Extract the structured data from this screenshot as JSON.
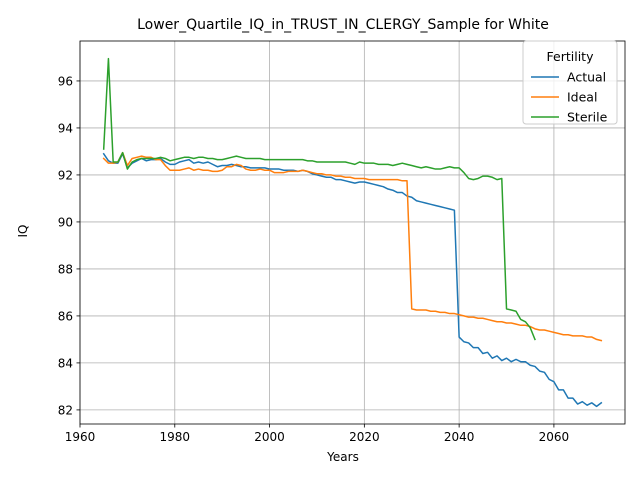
{
  "chart_data": {
    "type": "line",
    "title": "Lower_Quartile_IQ_in_TRUST_IN_CLERGY_Sample for White",
    "xlabel": "Years",
    "ylabel": "IQ",
    "xlim": [
      1960,
      2075
    ],
    "ylim": [
      81.4,
      97.7
    ],
    "xticks": [
      1960,
      1980,
      2000,
      2020,
      2040,
      2060
    ],
    "yticks": [
      82,
      84,
      86,
      88,
      90,
      92,
      94,
      96
    ],
    "grid": true,
    "legend": {
      "title": "Fertility",
      "placement": "top-right"
    },
    "series": [
      {
        "name": "Actual",
        "color": "#1f77b4",
        "points": [
          [
            1965,
            92.9
          ],
          [
            1966,
            92.6
          ],
          [
            1967,
            92.5
          ],
          [
            1968,
            92.5
          ],
          [
            1969,
            92.9
          ],
          [
            1970,
            92.3
          ],
          [
            1971,
            92.5
          ],
          [
            1972,
            92.6
          ],
          [
            1973,
            92.7
          ],
          [
            1974,
            92.6
          ],
          [
            1975,
            92.65
          ],
          [
            1976,
            92.65
          ],
          [
            1977,
            92.7
          ],
          [
            1978,
            92.55
          ],
          [
            1979,
            92.45
          ],
          [
            1980,
            92.45
          ],
          [
            1981,
            92.55
          ],
          [
            1982,
            92.6
          ],
          [
            1983,
            92.65
          ],
          [
            1984,
            92.5
          ],
          [
            1985,
            92.55
          ],
          [
            1986,
            92.5
          ],
          [
            1987,
            92.55
          ],
          [
            1988,
            92.45
          ],
          [
            1989,
            92.35
          ],
          [
            1990,
            92.4
          ],
          [
            1991,
            92.4
          ],
          [
            1992,
            92.45
          ],
          [
            1993,
            92.4
          ],
          [
            1994,
            92.35
          ],
          [
            1995,
            92.35
          ],
          [
            1996,
            92.3
          ],
          [
            1997,
            92.3
          ],
          [
            1998,
            92.3
          ],
          [
            1999,
            92.3
          ],
          [
            2000,
            92.25
          ],
          [
            2001,
            92.25
          ],
          [
            2002,
            92.25
          ],
          [
            2003,
            92.2
          ],
          [
            2004,
            92.2
          ],
          [
            2005,
            92.2
          ],
          [
            2006,
            92.15
          ],
          [
            2007,
            92.2
          ],
          [
            2008,
            92.15
          ],
          [
            2009,
            92.05
          ],
          [
            2010,
            92.0
          ],
          [
            2011,
            91.95
          ],
          [
            2012,
            91.9
          ],
          [
            2013,
            91.9
          ],
          [
            2014,
            91.8
          ],
          [
            2015,
            91.8
          ],
          [
            2016,
            91.75
          ],
          [
            2017,
            91.7
          ],
          [
            2018,
            91.65
          ],
          [
            2019,
            91.7
          ],
          [
            2020,
            91.7
          ],
          [
            2021,
            91.65
          ],
          [
            2022,
            91.6
          ],
          [
            2023,
            91.55
          ],
          [
            2024,
            91.5
          ],
          [
            2025,
            91.4
          ],
          [
            2026,
            91.35
          ],
          [
            2027,
            91.25
          ],
          [
            2028,
            91.25
          ],
          [
            2029,
            91.1
          ],
          [
            2030,
            91.05
          ],
          [
            2031,
            90.9
          ],
          [
            2032,
            90.85
          ],
          [
            2033,
            90.8
          ],
          [
            2034,
            90.75
          ],
          [
            2035,
            90.7
          ],
          [
            2036,
            90.65
          ],
          [
            2037,
            90.6
          ],
          [
            2038,
            90.55
          ],
          [
            2039,
            90.5
          ],
          [
            2040,
            85.1
          ],
          [
            2041,
            84.9
          ],
          [
            2042,
            84.85
          ],
          [
            2043,
            84.65
          ],
          [
            2044,
            84.65
          ],
          [
            2045,
            84.4
          ],
          [
            2046,
            84.45
          ],
          [
            2047,
            84.2
          ],
          [
            2048,
            84.3
          ],
          [
            2049,
            84.1
          ],
          [
            2050,
            84.2
          ],
          [
            2051,
            84.05
          ],
          [
            2052,
            84.15
          ],
          [
            2053,
            84.05
          ],
          [
            2054,
            84.05
          ],
          [
            2055,
            83.9
          ],
          [
            2056,
            83.85
          ],
          [
            2057,
            83.65
          ],
          [
            2058,
            83.6
          ],
          [
            2059,
            83.3
          ],
          [
            2060,
            83.2
          ],
          [
            2061,
            82.85
          ],
          [
            2062,
            82.85
          ],
          [
            2063,
            82.5
          ],
          [
            2064,
            82.5
          ],
          [
            2065,
            82.25
          ],
          [
            2066,
            82.35
          ],
          [
            2067,
            82.2
          ],
          [
            2068,
            82.3
          ],
          [
            2069,
            82.15
          ],
          [
            2070,
            82.3
          ]
        ]
      },
      {
        "name": "Ideal",
        "color": "#ff7f0e",
        "points": [
          [
            1965,
            92.7
          ],
          [
            1966,
            92.5
          ],
          [
            1967,
            92.5
          ],
          [
            1968,
            92.55
          ],
          [
            1969,
            92.95
          ],
          [
            1970,
            92.4
          ],
          [
            1971,
            92.7
          ],
          [
            1972,
            92.75
          ],
          [
            1973,
            92.8
          ],
          [
            1974,
            92.75
          ],
          [
            1975,
            92.75
          ],
          [
            1976,
            92.65
          ],
          [
            1977,
            92.65
          ],
          [
            1978,
            92.4
          ],
          [
            1979,
            92.2
          ],
          [
            1980,
            92.2
          ],
          [
            1981,
            92.2
          ],
          [
            1982,
            92.25
          ],
          [
            1983,
            92.3
          ],
          [
            1984,
            92.2
          ],
          [
            1985,
            92.25
          ],
          [
            1986,
            92.2
          ],
          [
            1987,
            92.2
          ],
          [
            1988,
            92.15
          ],
          [
            1989,
            92.15
          ],
          [
            1990,
            92.2
          ],
          [
            1991,
            92.35
          ],
          [
            1992,
            92.35
          ],
          [
            1993,
            92.45
          ],
          [
            1994,
            92.4
          ],
          [
            1995,
            92.25
          ],
          [
            1996,
            92.2
          ],
          [
            1997,
            92.2
          ],
          [
            1998,
            92.25
          ],
          [
            1999,
            92.2
          ],
          [
            2000,
            92.2
          ],
          [
            2001,
            92.1
          ],
          [
            2002,
            92.1
          ],
          [
            2003,
            92.1
          ],
          [
            2004,
            92.15
          ],
          [
            2005,
            92.15
          ],
          [
            2006,
            92.15
          ],
          [
            2007,
            92.2
          ],
          [
            2008,
            92.15
          ],
          [
            2009,
            92.1
          ],
          [
            2010,
            92.05
          ],
          [
            2011,
            92.05
          ],
          [
            2012,
            92.0
          ],
          [
            2013,
            92.0
          ],
          [
            2014,
            91.95
          ],
          [
            2015,
            91.95
          ],
          [
            2016,
            91.9
          ],
          [
            2017,
            91.9
          ],
          [
            2018,
            91.85
          ],
          [
            2019,
            91.85
          ],
          [
            2020,
            91.85
          ],
          [
            2021,
            91.8
          ],
          [
            2022,
            91.8
          ],
          [
            2023,
            91.8
          ],
          [
            2024,
            91.8
          ],
          [
            2025,
            91.8
          ],
          [
            2026,
            91.8
          ],
          [
            2027,
            91.8
          ],
          [
            2028,
            91.75
          ],
          [
            2029,
            91.75
          ],
          [
            2030,
            86.3
          ],
          [
            2031,
            86.25
          ],
          [
            2032,
            86.25
          ],
          [
            2033,
            86.25
          ],
          [
            2034,
            86.2
          ],
          [
            2035,
            86.2
          ],
          [
            2036,
            86.15
          ],
          [
            2037,
            86.15
          ],
          [
            2038,
            86.1
          ],
          [
            2039,
            86.1
          ],
          [
            2040,
            86.05
          ],
          [
            2041,
            86.0
          ],
          [
            2042,
            85.95
          ],
          [
            2043,
            85.95
          ],
          [
            2044,
            85.9
          ],
          [
            2045,
            85.9
          ],
          [
            2046,
            85.85
          ],
          [
            2047,
            85.8
          ],
          [
            2048,
            85.75
          ],
          [
            2049,
            85.75
          ],
          [
            2050,
            85.7
          ],
          [
            2051,
            85.7
          ],
          [
            2052,
            85.65
          ],
          [
            2053,
            85.6
          ],
          [
            2054,
            85.6
          ],
          [
            2055,
            85.55
          ],
          [
            2056,
            85.45
          ],
          [
            2057,
            85.4
          ],
          [
            2058,
            85.4
          ],
          [
            2059,
            85.35
          ],
          [
            2060,
            85.3
          ],
          [
            2061,
            85.25
          ],
          [
            2062,
            85.2
          ],
          [
            2063,
            85.2
          ],
          [
            2064,
            85.15
          ],
          [
            2065,
            85.15
          ],
          [
            2066,
            85.15
          ],
          [
            2067,
            85.1
          ],
          [
            2068,
            85.1
          ],
          [
            2069,
            85.0
          ],
          [
            2070,
            84.95
          ]
        ]
      },
      {
        "name": "Sterile",
        "color": "#2ca02c",
        "points": [
          [
            1965,
            93.1
          ],
          [
            1966,
            96.95
          ],
          [
            1967,
            92.55
          ],
          [
            1968,
            92.55
          ],
          [
            1969,
            92.95
          ],
          [
            1970,
            92.25
          ],
          [
            1971,
            92.55
          ],
          [
            1972,
            92.65
          ],
          [
            1973,
            92.7
          ],
          [
            1974,
            92.7
          ],
          [
            1975,
            92.7
          ],
          [
            1976,
            92.7
          ],
          [
            1977,
            92.75
          ],
          [
            1978,
            92.7
          ],
          [
            1979,
            92.6
          ],
          [
            1980,
            92.65
          ],
          [
            1981,
            92.7
          ],
          [
            1982,
            92.75
          ],
          [
            1983,
            92.75
          ],
          [
            1984,
            92.7
          ],
          [
            1985,
            92.75
          ],
          [
            1986,
            92.75
          ],
          [
            1987,
            92.7
          ],
          [
            1988,
            92.7
          ],
          [
            1989,
            92.65
          ],
          [
            1990,
            92.65
          ],
          [
            1991,
            92.7
          ],
          [
            1992,
            92.75
          ],
          [
            1993,
            92.8
          ],
          [
            1994,
            92.75
          ],
          [
            1995,
            92.7
          ],
          [
            1996,
            92.7
          ],
          [
            1997,
            92.7
          ],
          [
            1998,
            92.7
          ],
          [
            1999,
            92.65
          ],
          [
            2000,
            92.65
          ],
          [
            2001,
            92.65
          ],
          [
            2002,
            92.65
          ],
          [
            2003,
            92.65
          ],
          [
            2004,
            92.65
          ],
          [
            2005,
            92.65
          ],
          [
            2006,
            92.65
          ],
          [
            2007,
            92.65
          ],
          [
            2008,
            92.6
          ],
          [
            2009,
            92.6
          ],
          [
            2010,
            92.55
          ],
          [
            2011,
            92.55
          ],
          [
            2012,
            92.55
          ],
          [
            2013,
            92.55
          ],
          [
            2014,
            92.55
          ],
          [
            2015,
            92.55
          ],
          [
            2016,
            92.55
          ],
          [
            2017,
            92.5
          ],
          [
            2018,
            92.45
          ],
          [
            2019,
            92.55
          ],
          [
            2020,
            92.5
          ],
          [
            2021,
            92.5
          ],
          [
            2022,
            92.5
          ],
          [
            2023,
            92.45
          ],
          [
            2024,
            92.45
          ],
          [
            2025,
            92.45
          ],
          [
            2026,
            92.4
          ],
          [
            2027,
            92.45
          ],
          [
            2028,
            92.5
          ],
          [
            2029,
            92.45
          ],
          [
            2030,
            92.4
          ],
          [
            2031,
            92.35
          ],
          [
            2032,
            92.3
          ],
          [
            2033,
            92.35
          ],
          [
            2034,
            92.3
          ],
          [
            2035,
            92.25
          ],
          [
            2036,
            92.25
          ],
          [
            2037,
            92.3
          ],
          [
            2038,
            92.35
          ],
          [
            2039,
            92.3
          ],
          [
            2040,
            92.3
          ],
          [
            2041,
            92.1
          ],
          [
            2042,
            91.85
          ],
          [
            2043,
            91.8
          ],
          [
            2044,
            91.85
          ],
          [
            2045,
            91.95
          ],
          [
            2046,
            91.95
          ],
          [
            2047,
            91.9
          ],
          [
            2048,
            91.8
          ],
          [
            2049,
            91.85
          ],
          [
            2050,
            86.3
          ],
          [
            2051,
            86.25
          ],
          [
            2052,
            86.2
          ],
          [
            2053,
            85.85
          ],
          [
            2054,
            85.75
          ],
          [
            2055,
            85.5
          ],
          [
            2056,
            85.0
          ]
        ]
      }
    ]
  }
}
